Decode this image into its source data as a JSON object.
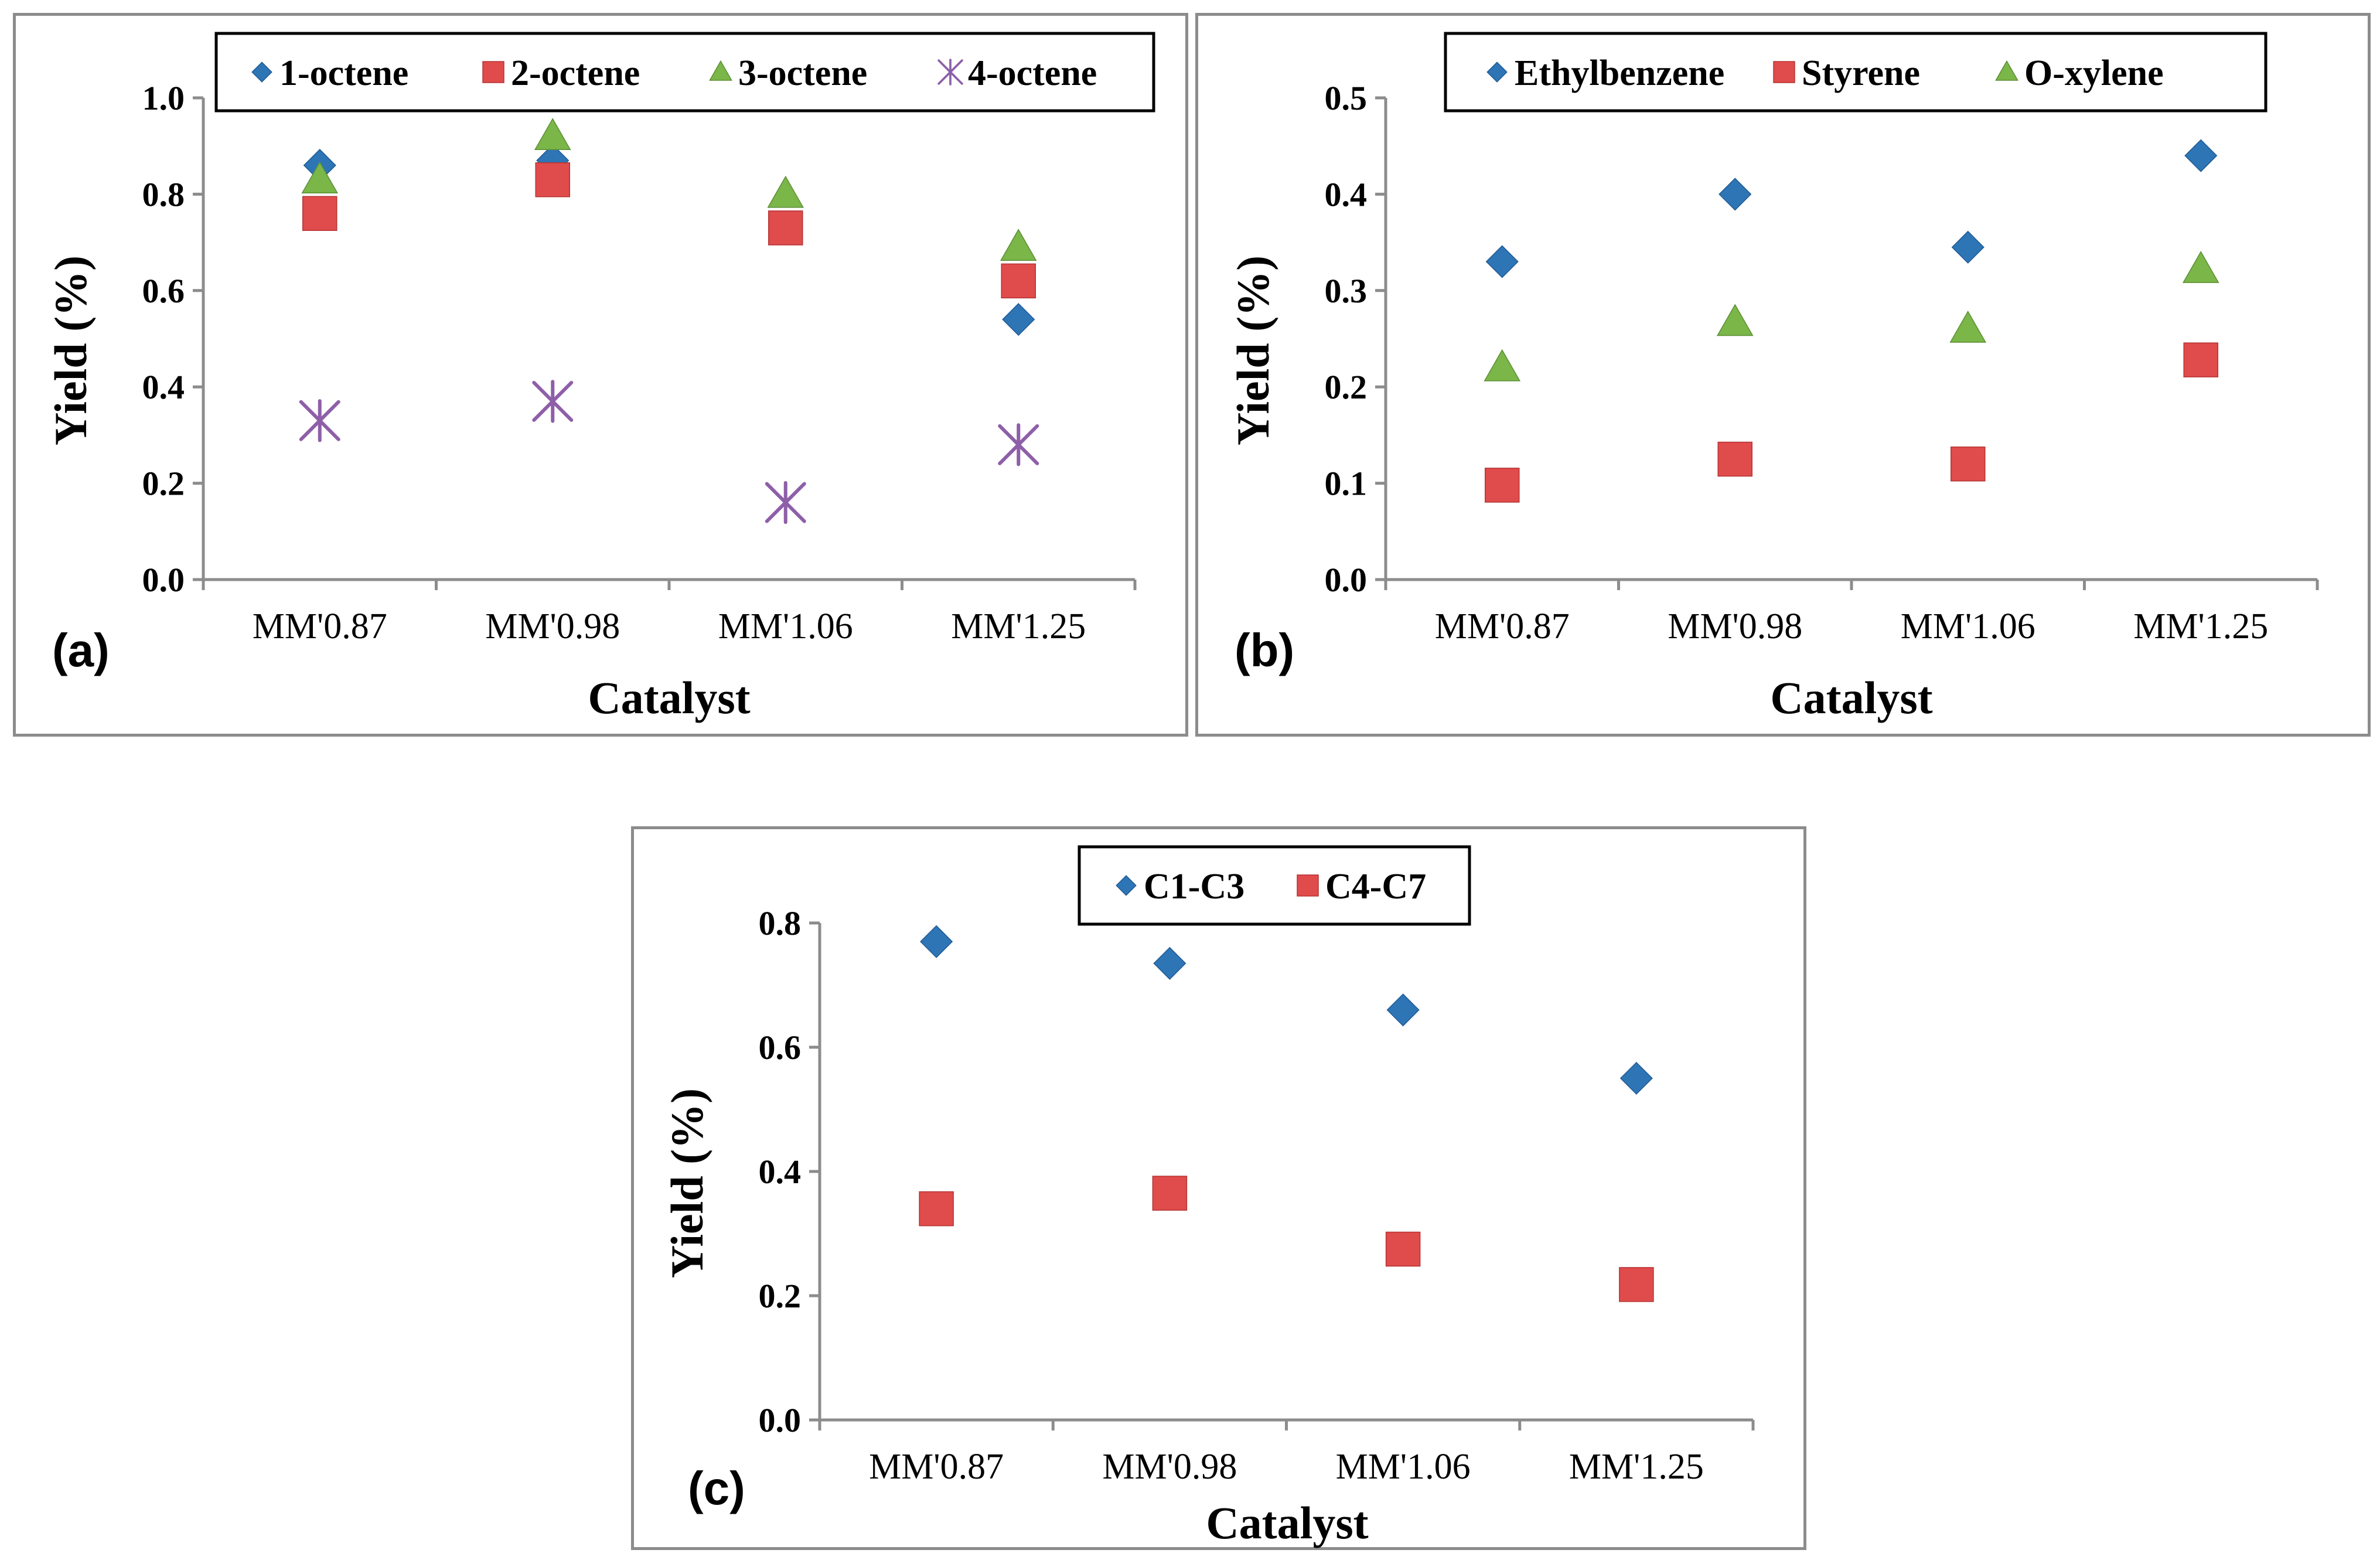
{
  "chart_data": [
    {
      "id": "a",
      "type": "scatter",
      "panel_label": "(a)",
      "xlabel": "Catalyst",
      "ylabel": "Yield (%)",
      "categories": [
        "MM'0.87",
        "MM'0.98",
        "MM'1.06",
        "MM'1.25"
      ],
      "ylim": [
        0,
        1.0
      ],
      "yticks": [
        "0.0",
        "0.2",
        "0.4",
        "0.6",
        "0.8",
        "1.0"
      ],
      "legend_position": "top",
      "series": [
        {
          "name": "1-octene",
          "marker": "diamond",
          "color": "#2e75b6",
          "values": [
            0.86,
            0.87,
            0.73,
            0.54
          ]
        },
        {
          "name": "2-octene",
          "marker": "square",
          "color": "#e04b4b",
          "values": [
            0.76,
            0.83,
            0.73,
            0.62
          ]
        },
        {
          "name": "3-octene",
          "marker": "triangle",
          "color": "#7ab648",
          "values": [
            0.83,
            0.92,
            0.8,
            0.69
          ]
        },
        {
          "name": "4-octene",
          "marker": "asterisk",
          "color": "#8e5fa8",
          "values": [
            0.33,
            0.37,
            0.16,
            0.28
          ]
        }
      ]
    },
    {
      "id": "b",
      "type": "scatter",
      "panel_label": "(b)",
      "xlabel": "Catalyst",
      "ylabel": "Yield (%)",
      "categories": [
        "MM'0.87",
        "MM'0.98",
        "MM'1.06",
        "MM'1.25"
      ],
      "ylim": [
        0,
        0.5
      ],
      "yticks": [
        "0.0",
        "0.1",
        "0.2",
        "0.3",
        "0.4",
        "0.5"
      ],
      "legend_position": "top",
      "series": [
        {
          "name": "Ethylbenzene",
          "marker": "diamond",
          "color": "#2e75b6",
          "values": [
            0.33,
            0.4,
            0.345,
            0.44
          ]
        },
        {
          "name": "Styrene",
          "marker": "square",
          "color": "#e04b4b",
          "values": [
            0.098,
            0.125,
            0.12,
            0.228
          ]
        },
        {
          "name": "O-xylene",
          "marker": "triangle",
          "color": "#7ab648",
          "values": [
            0.22,
            0.267,
            0.26,
            0.322
          ]
        }
      ]
    },
    {
      "id": "c",
      "type": "scatter",
      "panel_label": "(c)",
      "xlabel": "Catalyst",
      "ylabel": "Yield (%)",
      "categories": [
        "MM'0.87",
        "MM'0.98",
        "MM'1.06",
        "MM'1.25"
      ],
      "ylim": [
        0,
        0.8
      ],
      "yticks": [
        "0.0",
        "0.2",
        "0.4",
        "0.6",
        "0.8"
      ],
      "legend_position": "top",
      "series": [
        {
          "name": "C1-C3",
          "marker": "diamond",
          "color": "#2e75b6",
          "values": [
            0.77,
            0.735,
            0.66,
            0.55
          ]
        },
        {
          "name": "C4-C7",
          "marker": "square",
          "color": "#e04b4b",
          "values": [
            0.34,
            0.365,
            0.275,
            0.218
          ]
        }
      ]
    }
  ]
}
